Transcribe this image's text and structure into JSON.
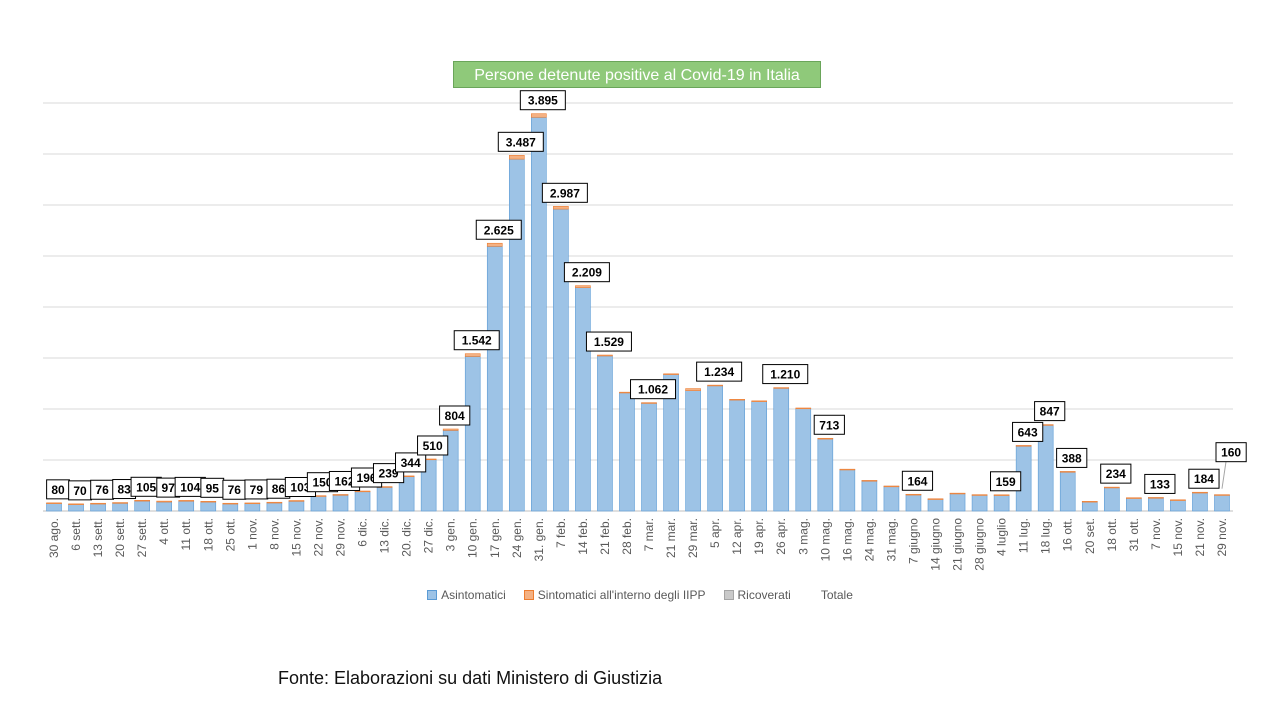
{
  "source": "Fonte: Elaborazioni su dati Ministero di Giustizia",
  "chart_data": {
    "type": "bar",
    "stacked": true,
    "title": "Persone detenute positive al Covid-19 in Italia",
    "grid": true,
    "legend_position": "bottom",
    "ylim": [
      0,
      4000
    ],
    "categories": [
      "30 ago.",
      "6 sett.",
      "13 sett.",
      "20 sett.",
      "27 sett.",
      "4 ott.",
      "11 ott.",
      "18 ott.",
      "25 ott.",
      "1 nov.",
      "8 nov.",
      "15 nov.",
      "22 nov.",
      "29 nov.",
      "6 dic.",
      "13 dic.",
      "20. dic.",
      "27 dic.",
      "3 gen.",
      "10 gen.",
      "17 gen.",
      "24 gen.",
      "31. gen.",
      "7 feb.",
      "14 feb.",
      "21 feb.",
      "28 feb.",
      "7 mar.",
      "21 mar.",
      "29 mar.",
      "5 apr.",
      "12 apr.",
      "19 apr.",
      "26 apr.",
      "3 mag.",
      "10 mag.",
      "16 mag.",
      "24 mag.",
      "31 mag.",
      "7 giugno",
      "14 giugno",
      "21 giugno",
      "28 giugno",
      "4 luglio",
      "11 lug.",
      "18 lug.",
      "16 ott.",
      "20 set.",
      "18 ott.",
      "31 ott.",
      "7 nov.",
      "15 nov.",
      "21 nov.",
      "29 nov."
    ],
    "totals": [
      80,
      70,
      76,
      83,
      105,
      97,
      104,
      95,
      76,
      79,
      86,
      103,
      150,
      162,
      196,
      239,
      344,
      510,
      804,
      1542,
      2625,
      3487,
      3895,
      2987,
      2209,
      1529,
      1165,
      1062,
      1345,
      1200,
      1234,
      1095,
      1080,
      1210,
      1010,
      713,
      410,
      300,
      245,
      164,
      120,
      175,
      160,
      159,
      643,
      847,
      388,
      95,
      234,
      130,
      133,
      110,
      184,
      160
    ],
    "series": [
      {
        "name": "Asintomatici",
        "color": "#9dc3e6",
        "values": [
          76,
          66,
          71,
          80,
          98,
          88,
          97,
          90,
          71,
          76,
          80,
          98,
          145,
          160,
          190,
          235,
          340,
          505,
          790,
          1515,
          2595,
          3450,
          3860,
          2960,
          2190,
          1520,
          1160,
          1060,
          1340,
          1180,
          1230,
          1090,
          1075,
          1205,
          1005,
          710,
          408,
          298,
          243,
          162,
          118,
          173,
          158,
          157,
          640,
          844,
          386,
          93,
          232,
          128,
          131,
          108,
          182,
          158
        ]
      },
      {
        "name": "Sintomatici all'interno degli IIPP",
        "color": "#f4b183",
        "values": [
          4,
          4,
          5,
          3,
          7,
          9,
          7,
          5,
          5,
          3,
          6,
          5,
          5,
          2,
          6,
          4,
          4,
          5,
          14,
          27,
          30,
          37,
          35,
          27,
          19,
          9,
          5,
          2,
          5,
          20,
          4,
          5,
          5,
          5,
          5,
          3,
          2,
          2,
          2,
          2,
          2,
          2,
          2,
          2,
          3,
          3,
          2,
          2,
          2,
          2,
          2,
          2,
          2,
          2
        ]
      },
      {
        "name": "Ricoverati",
        "color": "#c9c9c9",
        "values": [
          0,
          0,
          0,
          0,
          0,
          0,
          0,
          0,
          0,
          0,
          0,
          0,
          0,
          0,
          0,
          0,
          0,
          0,
          0,
          0,
          0,
          0,
          0,
          0,
          0,
          0,
          0,
          0,
          0,
          0,
          0,
          0,
          0,
          0,
          0,
          0,
          0,
          0,
          0,
          0,
          0,
          0,
          0,
          0,
          0,
          0,
          0,
          0,
          0,
          0,
          0,
          0,
          0,
          0
        ]
      },
      {
        "name": "Totale",
        "color": "none"
      }
    ],
    "data_labels": [
      {
        "i": 0,
        "text": "80"
      },
      {
        "i": 1,
        "text": "70"
      },
      {
        "i": 2,
        "text": "76"
      },
      {
        "i": 3,
        "text": "83"
      },
      {
        "i": 4,
        "text": "105"
      },
      {
        "i": 5,
        "text": "97"
      },
      {
        "i": 6,
        "text": "104"
      },
      {
        "i": 7,
        "text": "95"
      },
      {
        "i": 8,
        "text": "76"
      },
      {
        "i": 9,
        "text": "79"
      },
      {
        "i": 10,
        "text": "86"
      },
      {
        "i": 11,
        "text": "103"
      },
      {
        "i": 12,
        "text": "150"
      },
      {
        "i": 13,
        "text": "162"
      },
      {
        "i": 14,
        "text": "196"
      },
      {
        "i": 15,
        "text": "239"
      },
      {
        "i": 16,
        "text": "344"
      },
      {
        "i": 17,
        "text": "510"
      },
      {
        "i": 18,
        "text": "804"
      },
      {
        "i": 19,
        "text": "1.542"
      },
      {
        "i": 20,
        "text": "2.625"
      },
      {
        "i": 21,
        "text": "3.487"
      },
      {
        "i": 22,
        "text": "3.895"
      },
      {
        "i": 23,
        "text": "2.987"
      },
      {
        "i": 24,
        "text": "2.209"
      },
      {
        "i": 25,
        "text": "1.529"
      },
      {
        "i": 27,
        "text": "1.062"
      },
      {
        "i": 30,
        "text": "1.234"
      },
      {
        "i": 33,
        "text": "1.210"
      },
      {
        "i": 35,
        "text": "713"
      },
      {
        "i": 39,
        "text": "164"
      },
      {
        "i": 43,
        "text": "159"
      },
      {
        "i": 44,
        "text": "643"
      },
      {
        "i": 45,
        "text": "847"
      },
      {
        "i": 46,
        "text": "388"
      },
      {
        "i": 48,
        "text": "234"
      },
      {
        "i": 50,
        "text": "133"
      },
      {
        "i": 52,
        "text": "184"
      },
      {
        "i": 53,
        "text": "160"
      }
    ]
  }
}
